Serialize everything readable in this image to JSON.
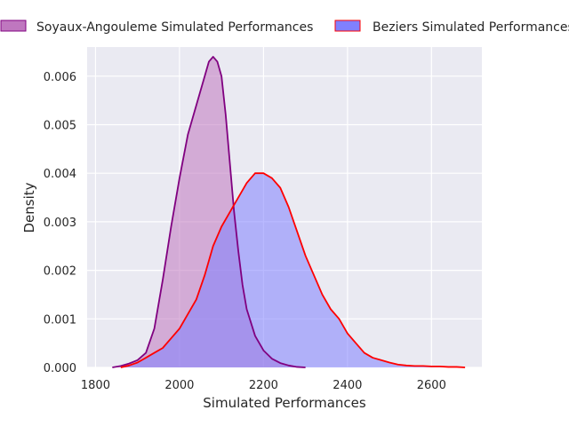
{
  "chart_data": {
    "type": "area",
    "xlabel": "Simulated Performances",
    "ylabel": "Density",
    "xlim": [
      1780,
      2720
    ],
    "ylim": [
      0,
      0.0066
    ],
    "x_ticks": [
      1800,
      2000,
      2200,
      2400,
      2600
    ],
    "x_tick_labels": [
      "1800",
      "2000",
      "2200",
      "2400",
      "2600"
    ],
    "y_ticks": [
      0,
      0.001,
      0.002,
      0.003,
      0.004,
      0.005,
      0.006
    ],
    "y_tick_labels": [
      "0.000",
      "0.001",
      "0.002",
      "0.003",
      "0.004",
      "0.005",
      "0.006"
    ],
    "grid": true,
    "legend_position": "top",
    "background": "#eaeaf2",
    "series": [
      {
        "name": "Soyaux-Angouleme Simulated Performances",
        "fill": "#bf77bf",
        "line": "#800080",
        "x": [
          1840,
          1860,
          1880,
          1900,
          1920,
          1940,
          1960,
          1980,
          2000,
          2020,
          2040,
          2060,
          2070,
          2080,
          2090,
          2100,
          2110,
          2120,
          2130,
          2140,
          2150,
          2160,
          2180,
          2200,
          2220,
          2240,
          2260,
          2280,
          2300
        ],
        "y": [
          0.0,
          3e-05,
          8e-05,
          0.00015,
          0.0003,
          0.0008,
          0.0018,
          0.0029,
          0.0039,
          0.0048,
          0.0054,
          0.006,
          0.0063,
          0.0064,
          0.0063,
          0.006,
          0.0052,
          0.0042,
          0.0032,
          0.0024,
          0.0017,
          0.0012,
          0.00065,
          0.00035,
          0.00018,
          9e-05,
          4e-05,
          1e-05,
          0.0
        ]
      },
      {
        "name": "Beziers Simulated Performances",
        "fill": "#8080ff",
        "line": "#ff0000",
        "x": [
          1860,
          1880,
          1900,
          1920,
          1940,
          1960,
          1980,
          2000,
          2020,
          2040,
          2060,
          2080,
          2100,
          2120,
          2140,
          2160,
          2180,
          2200,
          2220,
          2240,
          2260,
          2280,
          2300,
          2320,
          2340,
          2360,
          2380,
          2400,
          2420,
          2440,
          2460,
          2480,
          2500,
          2520,
          2540,
          2560,
          2580,
          2600,
          2620,
          2640,
          2660,
          2680
        ],
        "y": [
          0.0,
          4e-05,
          0.0001,
          0.0002,
          0.0003,
          0.0004,
          0.0006,
          0.0008,
          0.0011,
          0.0014,
          0.0019,
          0.0025,
          0.0029,
          0.0032,
          0.0035,
          0.0038,
          0.004,
          0.004,
          0.0039,
          0.0037,
          0.0033,
          0.0028,
          0.0023,
          0.0019,
          0.0015,
          0.0012,
          0.001,
          0.0007,
          0.0005,
          0.0003,
          0.0002,
          0.00015,
          0.0001,
          6e-05,
          4e-05,
          3e-05,
          3e-05,
          2e-05,
          2e-05,
          1e-05,
          1e-05,
          0.0
        ]
      }
    ]
  }
}
